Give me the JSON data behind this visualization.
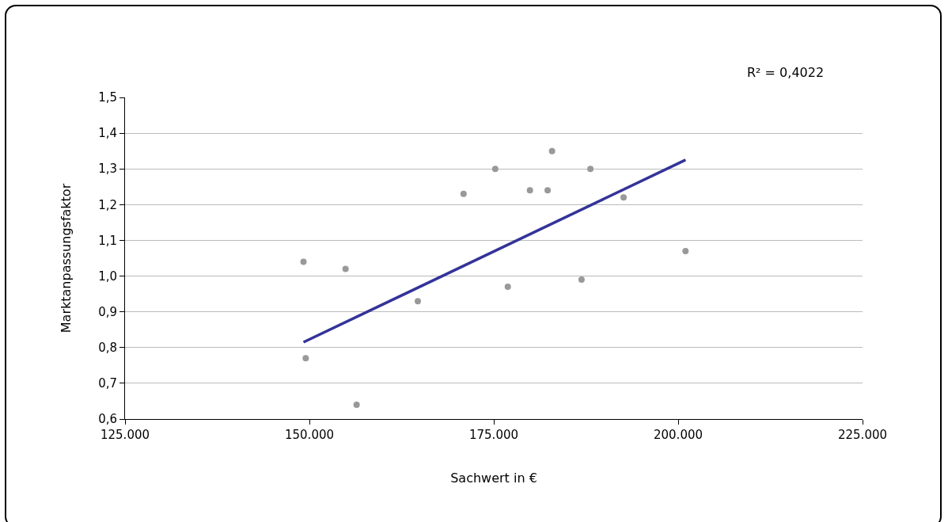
{
  "chart_data": {
    "type": "scatter",
    "xlabel": "Sachwert in €",
    "ylabel": "Marktanpassungsfaktor",
    "x": [
      149200,
      149500,
      154900,
      156400,
      164700,
      170900,
      175200,
      176900,
      179900,
      182300,
      182900,
      186900,
      188100,
      192600,
      201000
    ],
    "series": [
      {
        "color": "#999999",
        "marker": "circle",
        "values": [
          1.04,
          0.77,
          1.02,
          0.64,
          0.93,
          1.23,
          1.3,
          0.97,
          1.24,
          1.24,
          1.35,
          0.99,
          1.3,
          1.22,
          1.07
        ]
      },
      {
        "type": "line",
        "color": "#333399",
        "line_style": "solid",
        "marker": "none",
        "x": [
          149200,
          201000
        ],
        "values": [
          0.815,
          1.325
        ]
      }
    ],
    "annotations": [
      "R² = 0,4022"
    ],
    "xlim": [
      125000,
      225000
    ],
    "xticks": [
      {
        "value": 125000,
        "label": "125.000"
      },
      {
        "value": 150000,
        "label": "150.000"
      },
      {
        "value": 175000,
        "label": "175.000"
      },
      {
        "value": 200000,
        "label": "200.000"
      },
      {
        "value": 225000,
        "label": "225.000"
      }
    ],
    "ylim": [
      0.6,
      1.5
    ],
    "yticks": [
      {
        "value": 0.6,
        "label": "0,6"
      },
      {
        "value": 0.7,
        "label": "0,7"
      },
      {
        "value": 0.8,
        "label": "0,8"
      },
      {
        "value": 0.9,
        "label": "0,9"
      },
      {
        "value": 1.0,
        "label": "1,0"
      },
      {
        "value": 1.1,
        "label": "1,1"
      },
      {
        "value": 1.2,
        "label": "1,2"
      },
      {
        "value": 1.3,
        "label": "1,3"
      },
      {
        "value": 1.4,
        "label": "1,4"
      },
      {
        "value": 1.5,
        "label": "1,5"
      }
    ],
    "grid": "y"
  }
}
